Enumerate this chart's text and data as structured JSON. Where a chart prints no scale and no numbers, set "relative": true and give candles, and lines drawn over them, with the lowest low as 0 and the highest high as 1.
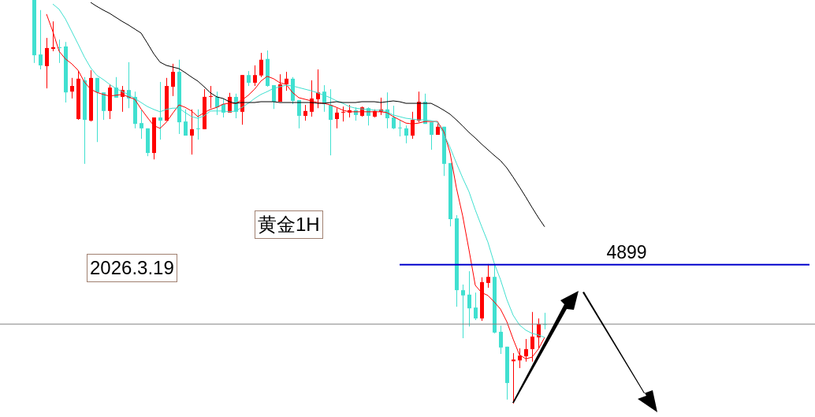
{
  "chart_data": {
    "type": "candlestick",
    "title": "黄金1H",
    "annotations": [
      "2026.3.19",
      {
        "text": "4899",
        "y": 0.344
      }
    ],
    "relative": true,
    "marker": "none",
    "categories": [
      null,
      null,
      null,
      null,
      null,
      null,
      null,
      null,
      null,
      null,
      null,
      null,
      null,
      null,
      null,
      null,
      null,
      null,
      null,
      null,
      null,
      null,
      null,
      null,
      null,
      null,
      null,
      null,
      null,
      null,
      null,
      null,
      null,
      null,
      null,
      null,
      null,
      null,
      null,
      null,
      null,
      null,
      null,
      null,
      null,
      null,
      null,
      null,
      null,
      null,
      null,
      null,
      null,
      null,
      null,
      null,
      null,
      null,
      null,
      null,
      null,
      null,
      null,
      null,
      null,
      null,
      null,
      null,
      null,
      null,
      null,
      null,
      null,
      null,
      null,
      null,
      null,
      null,
      null,
      null,
      null,
      null
    ],
    "ohlc": [
      [
        1,
        1,
        0.844,
        0.863
      ],
      [
        0.865,
        0.975,
        0.828,
        0.838
      ],
      [
        0.836,
        0.906,
        0.781,
        0.881
      ],
      [
        0.879,
        0.947,
        0.873,
        0.883
      ],
      [
        0.883,
        0.902,
        0.844,
        0.881
      ],
      [
        0.885,
        0.896,
        0.746,
        0.771
      ],
      [
        0.773,
        0.807,
        0.756,
        0.787
      ],
      [
        0.705,
        0.824,
        0.703,
        0.805
      ],
      [
        0.801,
        0.809,
        0.594,
        0.703
      ],
      [
        0.701,
        0.826,
        0.699,
        0.807
      ],
      [
        0.807,
        0.807,
        0.648,
        0.771
      ],
      [
        0.771,
        0.771,
        0.703,
        0.725
      ],
      [
        0.725,
        0.791,
        0.705,
        0.783
      ],
      [
        0.783,
        0.809,
        0.758,
        0.758
      ],
      [
        0.76,
        0.787,
        0.723,
        0.777
      ],
      [
        0.777,
        0.846,
        0.732,
        0.756
      ],
      [
        0.76,
        0.773,
        0.682,
        0.693
      ],
      [
        0.695,
        0.727,
        0.656,
        0.682
      ],
      [
        0.682,
        0.682,
        0.613,
        0.621
      ],
      [
        0.621,
        0.709,
        0.605,
        0.709
      ],
      [
        0.709,
        0.797,
        0.654,
        0.701
      ],
      [
        0.701,
        0.807,
        0.701,
        0.787
      ],
      [
        0.785,
        0.842,
        0.762,
        0.822
      ],
      [
        0.822,
        0.852,
        0.668,
        0.697
      ],
      [
        0.699,
        0.729,
        0.664,
        0.664
      ],
      [
        0.664,
        0.729,
        0.617,
        0.68
      ],
      [
        0.682,
        0.729,
        0.654,
        0.68
      ],
      [
        0.68,
        0.779,
        0.68,
        0.76
      ],
      [
        0.76,
        0.787,
        0.732,
        0.762
      ],
      [
        0.76,
        0.773,
        0.715,
        0.734
      ],
      [
        0.742,
        0.756,
        0.709,
        0.721
      ],
      [
        0.721,
        0.77,
        0.721,
        0.76
      ],
      [
        0.76,
        0.768,
        0.707,
        0.723
      ],
      [
        0.723,
        0.814,
        0.691,
        0.814
      ],
      [
        0.814,
        0.824,
        0.787,
        0.795
      ],
      [
        0.795,
        0.838,
        0.787,
        0.814
      ],
      [
        0.813,
        0.869,
        0.809,
        0.852
      ],
      [
        0.854,
        0.875,
        0.785,
        0.787
      ],
      [
        0.789,
        0.789,
        0.73,
        0.748
      ],
      [
        0.748,
        0.816,
        0.748,
        0.791
      ],
      [
        0.791,
        0.822,
        0.775,
        0.805
      ],
      [
        0.805,
        0.809,
        0.742,
        0.75
      ],
      [
        0.752,
        0.752,
        0.682,
        0.713
      ],
      [
        0.713,
        0.74,
        0.701,
        0.725
      ],
      [
        0.723,
        0.801,
        0.711,
        0.756
      ],
      [
        0.754,
        0.828,
        0.732,
        0.771
      ],
      [
        0.773,
        0.789,
        0.723,
        0.742
      ],
      [
        0.74,
        0.779,
        0.615,
        0.703
      ],
      [
        0.705,
        0.732,
        0.682,
        0.721
      ],
      [
        0.721,
        0.736,
        0.699,
        0.723
      ],
      [
        0.721,
        0.74,
        0.709,
        0.727
      ],
      [
        0.727,
        0.734,
        0.701,
        0.715
      ],
      [
        0.713,
        0.736,
        0.711,
        0.734
      ],
      [
        0.732,
        0.734,
        0.689,
        0.713
      ],
      [
        0.711,
        0.729,
        0.709,
        0.725
      ],
      [
        0.723,
        0.758,
        0.715,
        0.729
      ],
      [
        0.729,
        0.771,
        0.682,
        0.707
      ],
      [
        0.709,
        0.738,
        0.68,
        0.682
      ],
      [
        0.684,
        0.703,
        0.662,
        0.682
      ],
      [
        0.682,
        0.689,
        0.645,
        0.664
      ],
      [
        0.664,
        0.723,
        0.656,
        0.703
      ],
      [
        0.701,
        0.773,
        0.697,
        0.748
      ],
      [
        0.748,
        0.768,
        0.693,
        0.693
      ],
      [
        0.697,
        0.697,
        0.629,
        0.666
      ],
      [
        0.666,
        0.695,
        0.666,
        0.686
      ],
      [
        0.686,
        0.686,
        0.564,
        0.594
      ],
      [
        0.596,
        0.596,
        0.439,
        0.457
      ],
      [
        0.459,
        0.467,
        0.24,
        0.281
      ],
      [
        0.281,
        0.295,
        0.162,
        0.268
      ],
      [
        0.27,
        0.328,
        0.191,
        0.236
      ],
      [
        0.238,
        0.275,
        0.207,
        0.211
      ],
      [
        0.211,
        0.313,
        0.205,
        0.301
      ],
      [
        0.299,
        0.346,
        0.287,
        0.314
      ],
      [
        0.314,
        0.346,
        0.174,
        0.176
      ],
      [
        0.178,
        0.193,
        0.123,
        0.139
      ],
      [
        0.141,
        0.141,
        0.01,
        0.051
      ],
      [
        0.105,
        0.125,
        0,
        0.109
      ],
      [
        0.107,
        0.137,
        0.088,
        0.119
      ],
      [
        0.117,
        0.16,
        0.104,
        0.135
      ],
      [
        0.135,
        0.227,
        0.104,
        0.166
      ],
      [
        0.164,
        0.211,
        0.137,
        0.197
      ],
      [
        0.197,
        0.225,
        0.184,
        0.195
      ]
    ],
    "colors": [
      "#40e0d0",
      "#40e0d0",
      "#ff0000",
      "#ff0000",
      "#40e0d0",
      "#40e0d0",
      "#ff0000",
      "#ff0000",
      "#40e0d0",
      "#ff0000",
      "#40e0d0",
      "#40e0d0",
      "#ff0000",
      "#40e0d0",
      "#ff0000",
      "#40e0d0",
      "#40e0d0",
      "#40e0d0",
      "#40e0d0",
      "#ff0000",
      "#40e0d0",
      "#ff0000",
      "#ff0000",
      "#40e0d0",
      "#40e0d0",
      "#ff0000",
      "#40e0d0",
      "#ff0000",
      "#ff0000",
      "#40e0d0",
      "#40e0d0",
      "#ff0000",
      "#40e0d0",
      "#ff0000",
      "#40e0d0",
      "#ff0000",
      "#ff0000",
      "#40e0d0",
      "#40e0d0",
      "#ff0000",
      "#ff0000",
      "#40e0d0",
      "#40e0d0",
      "#ff0000",
      "#ff0000",
      "#ff0000",
      "#40e0d0",
      "#40e0d0",
      "#ff0000",
      "#ff0000",
      "#ff0000",
      "#40e0d0",
      "#ff0000",
      "#40e0d0",
      "#ff0000",
      "#ff0000",
      "#40e0d0",
      "#40e0d0",
      "#40e0d0",
      "#40e0d0",
      "#ff0000",
      "#ff0000",
      "#40e0d0",
      "#40e0d0",
      "#ff0000",
      "#40e0d0",
      "#40e0d0",
      "#40e0d0",
      "#40e0d0",
      "#40e0d0",
      "#40e0d0",
      "#ff0000",
      "#ff0000",
      "#40e0d0",
      "#40e0d0",
      "#40e0d0",
      "#ff0000",
      "#ff0000",
      "#ff0000",
      "#ff0000",
      "#ff0000",
      "#40e0d0"
    ],
    "series": [
      {
        "type": "line",
        "color": "#ff0000",
        "values": [
          null,
          null,
          0.965,
          0.922,
          0.873,
          0.854,
          0.842,
          0.826,
          0.797,
          0.779,
          0.771,
          0.766,
          0.762,
          0.764,
          0.766,
          0.76,
          0.754,
          0.73,
          0.709,
          0.689,
          0.682,
          0.697,
          0.719,
          0.74,
          0.734,
          0.725,
          0.711,
          0.721,
          0.729,
          0.734,
          0.742,
          0.744,
          0.744,
          0.752,
          0.764,
          0.779,
          0.799,
          0.811,
          0.805,
          0.795,
          0.791,
          0.771,
          0.758,
          0.754,
          0.75,
          0.746,
          0.744,
          0.74,
          0.734,
          0.727,
          0.723,
          0.723,
          0.723,
          0.723,
          0.723,
          0.723,
          0.721,
          0.711,
          0.703,
          0.695,
          0.693,
          0.695,
          0.699,
          0.699,
          0.699,
          0.674,
          0.621,
          0.535,
          0.465,
          0.381,
          0.293,
          0.275,
          0.268,
          0.252,
          0.234,
          0.203,
          0.16,
          0.121,
          0.111,
          0.115,
          0.135,
          0.164
        ]
      },
      {
        "type": "line",
        "color": "#40e0d0",
        "values": [
          null,
          null,
          null,
          0.99,
          0.977,
          0.953,
          0.922,
          0.891,
          0.859,
          0.832,
          0.813,
          0.803,
          0.791,
          0.781,
          0.773,
          0.766,
          0.756,
          0.746,
          0.736,
          0.729,
          0.723,
          0.729,
          0.732,
          0.732,
          0.721,
          0.711,
          0.707,
          0.713,
          0.725,
          0.725,
          0.725,
          0.723,
          0.725,
          0.734,
          0.744,
          0.756,
          0.766,
          0.773,
          0.781,
          0.785,
          0.789,
          0.787,
          0.783,
          0.779,
          0.775,
          0.77,
          0.764,
          0.758,
          0.75,
          0.744,
          0.736,
          0.732,
          0.73,
          0.729,
          0.727,
          0.727,
          0.723,
          0.715,
          0.711,
          0.707,
          0.705,
          0.703,
          0.703,
          0.701,
          0.697,
          0.668,
          0.635,
          0.596,
          0.559,
          0.525,
          0.48,
          0.439,
          0.4,
          0.348,
          0.307,
          0.258,
          0.219,
          0.195,
          0.182,
          0.174,
          0.17,
          0.164
        ]
      },
      {
        "type": "line",
        "color": "#000000",
        "values": [
          null,
          null,
          null,
          null,
          null,
          null,
          null,
          null,
          null,
          0.994,
          0.984,
          0.975,
          0.967,
          0.957,
          0.947,
          0.938,
          0.928,
          0.918,
          0.893,
          0.867,
          0.846,
          0.838,
          0.834,
          0.83,
          0.82,
          0.809,
          0.799,
          0.785,
          0.77,
          0.76,
          0.756,
          0.748,
          0.744,
          0.746,
          0.746,
          0.746,
          0.748,
          0.748,
          0.748,
          0.746,
          0.746,
          0.746,
          0.746,
          0.746,
          0.746,
          0.744,
          0.744,
          0.746,
          0.748,
          0.746,
          0.746,
          0.746,
          0.748,
          0.748,
          0.748,
          0.746,
          0.748,
          0.75,
          0.748,
          0.744,
          0.744,
          0.744,
          0.744,
          0.744,
          0.736,
          0.727,
          0.717,
          0.703,
          0.688,
          0.672,
          0.658,
          0.643,
          0.629,
          0.615,
          0.602,
          0.584,
          0.561,
          0.537,
          0.512,
          0.486,
          0.461,
          0.438
        ]
      }
    ],
    "ref_lines": [
      {
        "axis": "y",
        "value": 0.344,
        "color": "#0000cc",
        "line_style": "solid"
      },
      {
        "axis": "y",
        "value": 0.197,
        "color": "#808080"
      }
    ]
  }
}
